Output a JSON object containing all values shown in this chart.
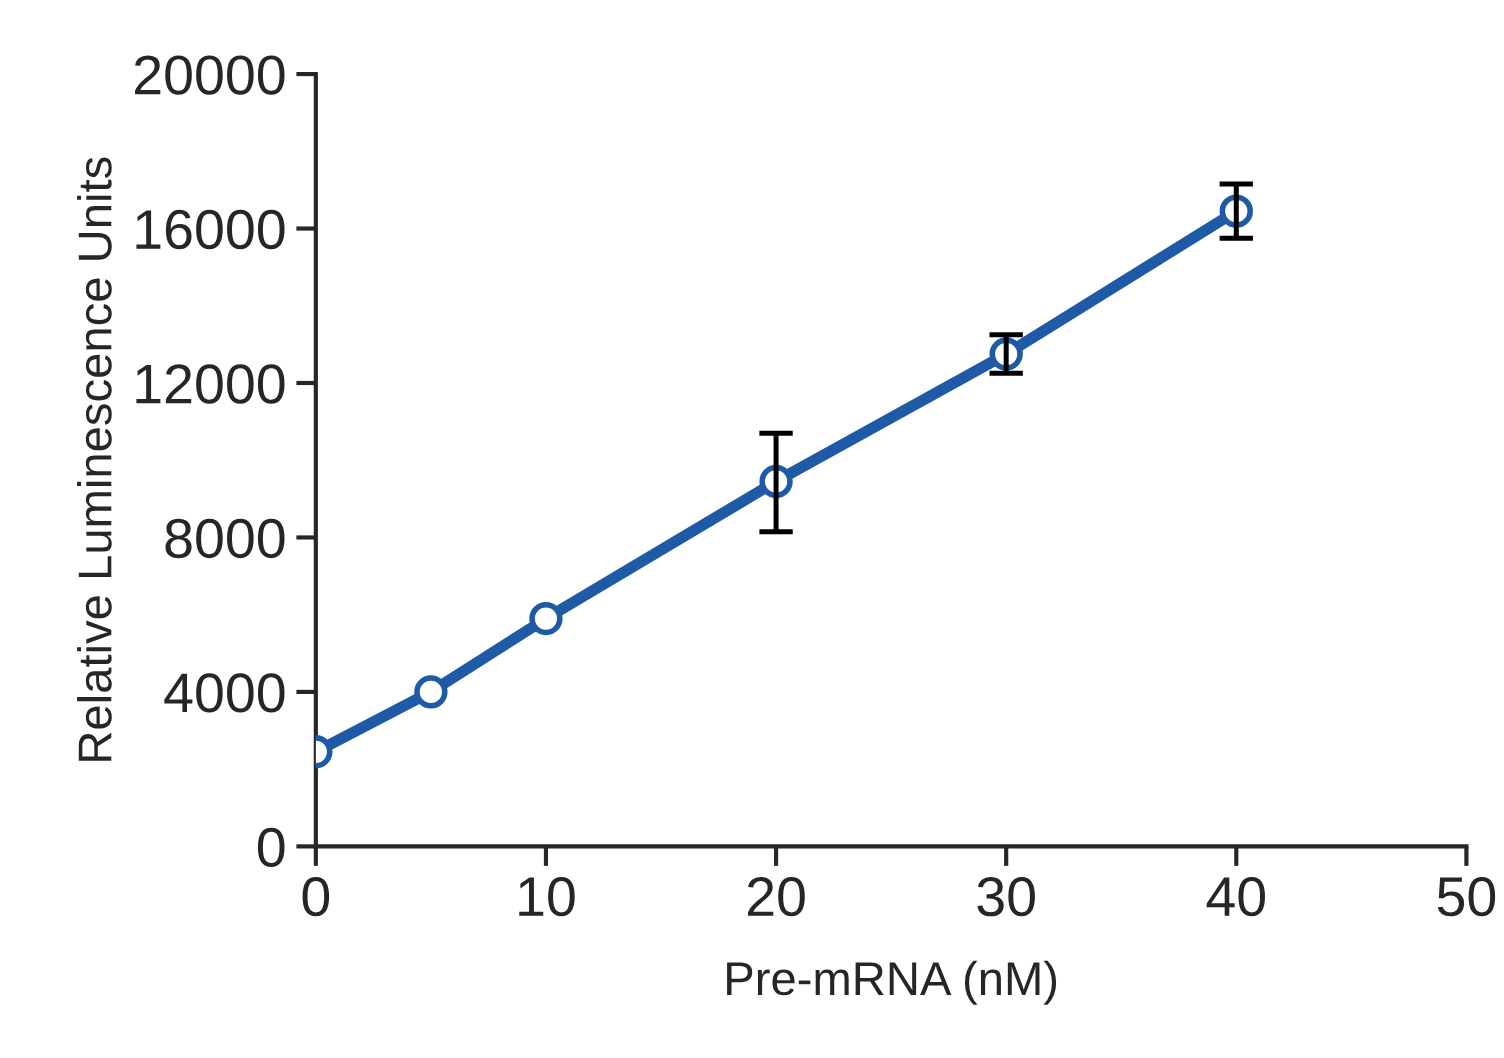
{
  "chart_data": {
    "type": "line",
    "xlabel": "Pre-mRNA (nM)",
    "ylabel": "Relative Luminescence Units",
    "x": [
      0,
      5,
      10,
      20,
      30,
      40
    ],
    "series": [
      {
        "color": "#1f5aa6",
        "values": [
          2450,
          4000,
          5900,
          9450,
          12750,
          16450
        ],
        "errors": [
          null,
          null,
          null,
          [
            8150,
            10700
          ],
          [
            12250,
            13250
          ],
          [
            15750,
            17150
          ]
        ]
      }
    ],
    "xlim": [
      0,
      50
    ],
    "xticks": [
      0,
      10,
      20,
      30,
      40,
      50
    ],
    "ylim": [
      0,
      20000
    ],
    "yticks": [
      0,
      4000,
      8000,
      12000,
      16000,
      20000
    ],
    "marker": "circle",
    "line_style": "solid",
    "grid": false
  }
}
